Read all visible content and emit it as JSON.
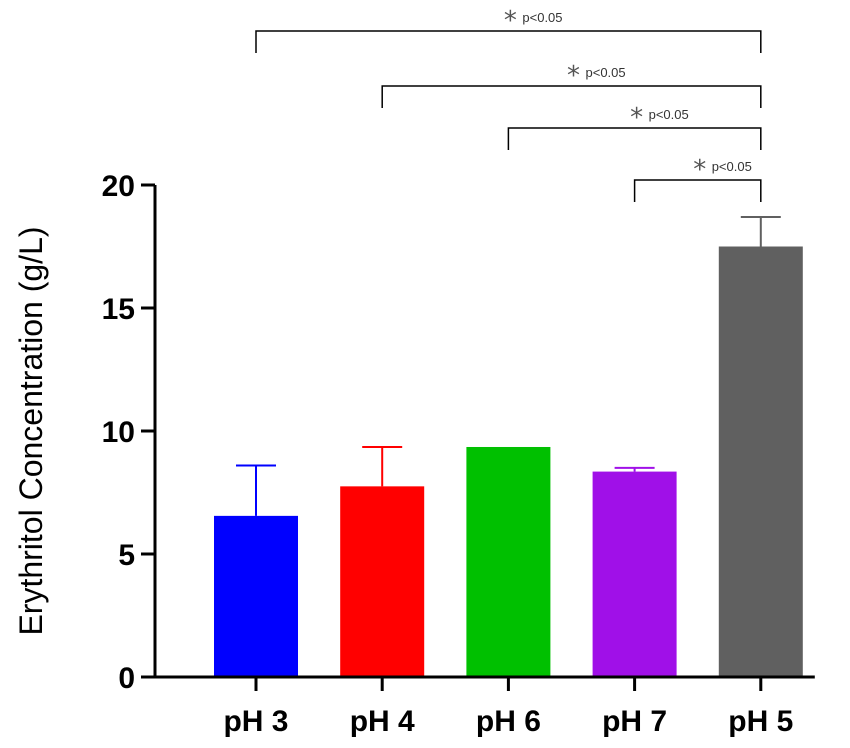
{
  "chart_data": {
    "type": "bar",
    "title": "",
    "xlabel": "",
    "ylabel": "Erythritol Concentration (g/L)",
    "ylim": [
      0,
      20
    ],
    "yticks": [
      0,
      5,
      10,
      15,
      20
    ],
    "grid": false,
    "categories": [
      "pH 3",
      "pH 4",
      "pH 6",
      "pH 7",
      "pH 5"
    ],
    "values": [
      6.55,
      7.75,
      9.35,
      8.35,
      17.5
    ],
    "errors": [
      2.05,
      1.6,
      0.0,
      0.15,
      1.2
    ],
    "colors": [
      "#0000ff",
      "#ff0000",
      "#00c000",
      "#a010e8",
      "#606060"
    ],
    "significance": [
      {
        "from": "pH 3",
        "to": "pH 5",
        "star": "*",
        "label": "p<0.05"
      },
      {
        "from": "pH 4",
        "to": "pH 5",
        "star": "*",
        "label": "p<0.05"
      },
      {
        "from": "pH 6",
        "to": "pH 5",
        "star": "*",
        "label": "p<0.05"
      },
      {
        "from": "pH 7",
        "to": "pH 5",
        "star": "*",
        "label": "p<0.05"
      }
    ]
  }
}
